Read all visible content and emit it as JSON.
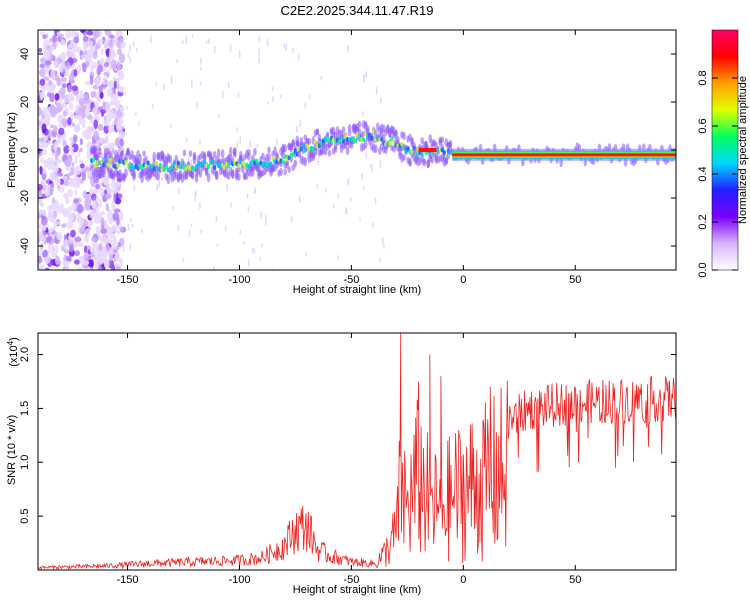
{
  "title": "C2E2.2025.344.11.47.R19",
  "chart_data": [
    {
      "type": "heatmap",
      "name": "spectrogram",
      "xlabel": "Height of straight line (km)",
      "ylabel": "Frequency (Hz)",
      "xlim": [
        -190,
        95
      ],
      "ylim": [
        -50,
        50
      ],
      "xticks": [
        -150,
        -100,
        -50,
        0,
        50
      ],
      "yticks": [
        -40,
        -20,
        0,
        20,
        40
      ],
      "colorbar": {
        "label": "Normalized spectral amplitude",
        "range": [
          0,
          1
        ],
        "ticks": [
          "0.0",
          "0.2",
          "0.4",
          "0.6",
          "0.8"
        ],
        "colors": [
          "#ffffff",
          "#d8b4ff",
          "#7a00ff",
          "#2020ff",
          "#00d8ff",
          "#00ff60",
          "#e0ff00",
          "#ffa000",
          "#ff0000",
          "#ff0066"
        ]
      },
      "ridge": {
        "x": [
          -165,
          -150,
          -130,
          -110,
          -100,
          -90,
          -80,
          -70,
          -60,
          -50,
          -40,
          -35,
          -30,
          -25,
          -20,
          -15,
          -10,
          -5,
          0,
          20,
          50,
          95
        ],
        "y": [
          -5,
          -6,
          -7,
          -6,
          -6,
          -5,
          -4,
          1,
          4,
          5,
          6,
          4,
          3,
          0,
          -1,
          0,
          -1,
          -2,
          -2,
          -2,
          -2,
          -2
        ]
      },
      "noise_zone_x": [
        -190,
        -160
      ]
    },
    {
      "type": "line",
      "name": "snr",
      "xlabel": "Height of straight line (km)",
      "ylabel": "SNR (10 * v/v)",
      "scale_label": "(x10",
      "scale_exp": "4",
      "scale_close": ")",
      "xlim": [
        -190,
        95
      ],
      "ylim": [
        0,
        2.2
      ],
      "xticks": [
        -150,
        -100,
        -50,
        0,
        50
      ],
      "yticks": [
        "0.5",
        "1.0",
        "1.5",
        "2.0"
      ],
      "color": "#ee2222",
      "envelope": {
        "x": [
          -190,
          -160,
          -140,
          -120,
          -100,
          -90,
          -80,
          -75,
          -70,
          -65,
          -60,
          -50,
          -40,
          -35,
          -30,
          -28,
          -25,
          -20,
          -15,
          -10,
          -5,
          0,
          10,
          20,
          30,
          50,
          70,
          95
        ],
        "y": [
          0.03,
          0.05,
          0.08,
          0.1,
          0.12,
          0.15,
          0.3,
          0.5,
          0.55,
          0.25,
          0.18,
          0.1,
          0.08,
          0.25,
          0.55,
          1.3,
          0.9,
          1.4,
          1.0,
          0.9,
          1.1,
          1.2,
          1.3,
          1.5,
          1.62,
          1.68,
          1.7,
          1.72
        ]
      },
      "spikes": [
        {
          "x": -28,
          "y": 2.2
        },
        {
          "x": -15,
          "y": 2.0
        },
        {
          "x": -10,
          "y": 1.8
        },
        {
          "x": -20,
          "y": 1.75
        },
        {
          "x": 12,
          "y": 1.7
        }
      ]
    }
  ]
}
